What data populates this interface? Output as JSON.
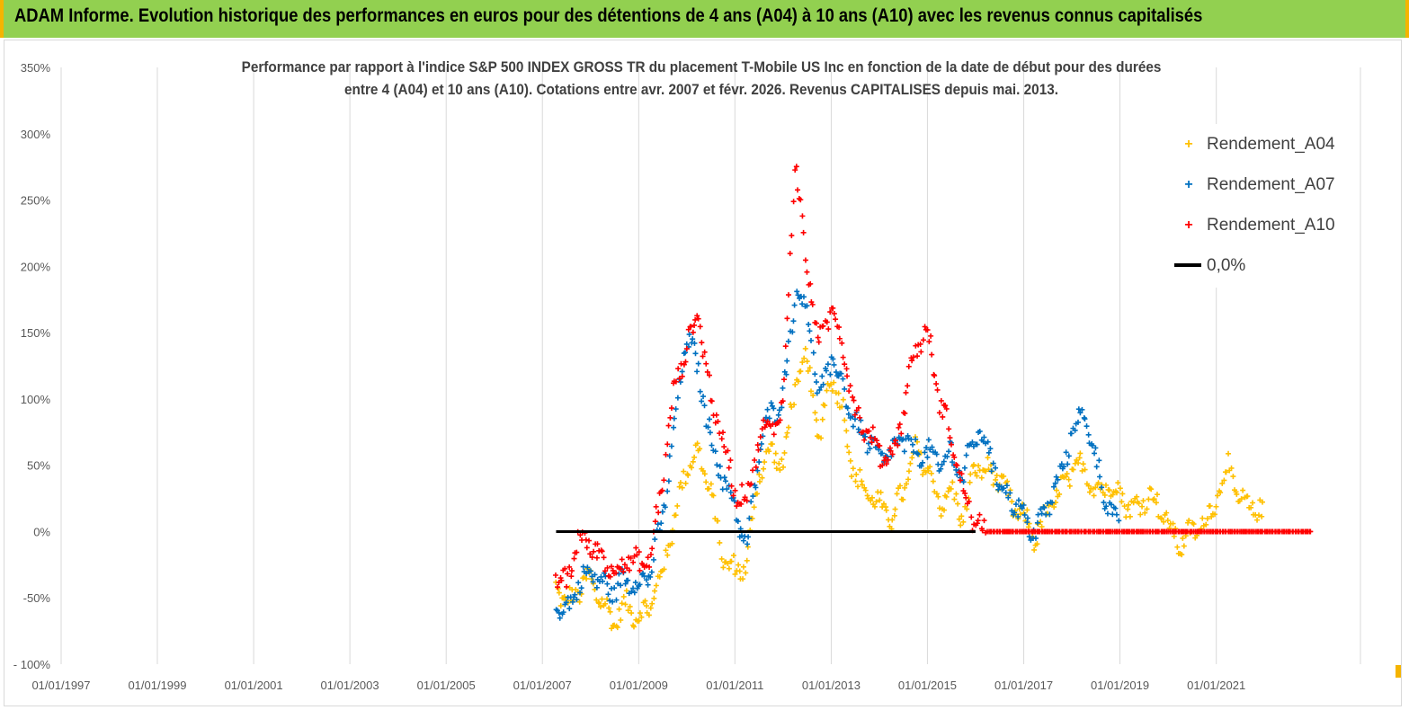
{
  "banner": {
    "title": "ADAM Informe. Evolution historique des performances en euros pour des détentions de 4 ans (A04) à 10 ans (A10) avec les revenus connus capitalisés"
  },
  "colors": {
    "banner_bg": "#92d050",
    "accent": "#f5b400",
    "A04": "#ffc000",
    "A07": "#0070c0",
    "A10": "#ff0000",
    "zero_line": "#000000"
  },
  "chart_data": {
    "type": "scatter",
    "title_lines": [
      "Performance par rapport à l'indice S&P 500 INDEX GROSS TR  du placement T-Mobile US Inc en fonction de la date de début pour des durées",
      "entre 4 (A04) et 10 ans (A10). Cotations entre avr. 2007 et févr. 2026. Revenus CAPITALISES depuis mai. 2013."
    ],
    "xlabel": "",
    "ylabel": "",
    "xlim": [
      "1997-01-01",
      "2023-12-31"
    ],
    "ylim": [
      -100,
      350
    ],
    "x_tick_labels": [
      "01/01/1997",
      "01/01/1999",
      "01/01/2001",
      "01/01/2003",
      "01/01/2005",
      "01/01/2007",
      "01/01/2009",
      "01/01/2011",
      "01/01/2013",
      "01/01/2015",
      "01/01/2017",
      "01/01/2019",
      "01/01/2021"
    ],
    "y_tick_values": [
      -100,
      -50,
      0,
      50,
      100,
      150,
      200,
      250,
      300,
      350
    ],
    "y_tick_labels": [
      "- 100%",
      "-50%",
      "0%",
      "50%",
      "100%",
      "150%",
      "200%",
      "250%",
      "300%",
      "350%"
    ],
    "marker": "+",
    "grid": "vertical gridlines",
    "legend_position": "top-right",
    "series": [
      {
        "name": "Rendement_A04",
        "points": [
          [
            "2007-04-15",
            -40
          ],
          [
            "2007-07-01",
            -55
          ],
          [
            "2007-10-01",
            -45
          ],
          [
            "2008-01-01",
            -35
          ],
          [
            "2008-04-01",
            -55
          ],
          [
            "2008-07-01",
            -68
          ],
          [
            "2008-10-01",
            -55
          ],
          [
            "2009-01-01",
            -65
          ],
          [
            "2009-04-01",
            -55
          ],
          [
            "2009-07-01",
            -30
          ],
          [
            "2009-10-01",
            10
          ],
          [
            "2010-01-01",
            50
          ],
          [
            "2010-04-01",
            60
          ],
          [
            "2010-07-01",
            30
          ],
          [
            "2010-10-01",
            -20
          ],
          [
            "2011-01-01",
            -30
          ],
          [
            "2011-04-01",
            -25
          ],
          [
            "2011-07-01",
            45
          ],
          [
            "2011-10-01",
            60
          ],
          [
            "2012-01-01",
            50
          ],
          [
            "2012-04-01",
            110
          ],
          [
            "2012-07-01",
            130
          ],
          [
            "2012-10-01",
            70
          ],
          [
            "2013-01-01",
            120
          ],
          [
            "2013-04-01",
            90
          ],
          [
            "2013-07-01",
            40
          ],
          [
            "2013-10-01",
            30
          ],
          [
            "2014-01-01",
            20
          ],
          [
            "2014-04-01",
            10
          ],
          [
            "2014-07-01",
            30
          ],
          [
            "2014-10-01",
            60
          ],
          [
            "2015-01-01",
            50
          ],
          [
            "2015-04-01",
            20
          ],
          [
            "2015-07-01",
            30
          ],
          [
            "2015-10-01",
            10
          ],
          [
            "2016-01-01",
            50
          ],
          [
            "2016-04-01",
            45
          ],
          [
            "2016-07-01",
            40
          ],
          [
            "2016-10-01",
            20
          ],
          [
            "2017-01-01",
            10
          ],
          [
            "2017-04-01",
            -5
          ],
          [
            "2017-07-01",
            15
          ],
          [
            "2017-10-01",
            30
          ],
          [
            "2018-01-01",
            45
          ],
          [
            "2018-04-01",
            50
          ],
          [
            "2018-07-01",
            30
          ],
          [
            "2018-10-01",
            35
          ],
          [
            "2019-01-01",
            30
          ],
          [
            "2019-04-01",
            15
          ],
          [
            "2019-07-01",
            25
          ],
          [
            "2019-10-01",
            25
          ],
          [
            "2020-01-01",
            5
          ],
          [
            "2020-04-01",
            -10
          ],
          [
            "2020-07-01",
            0
          ],
          [
            "2020-10-01",
            5
          ],
          [
            "2021-01-01",
            25
          ],
          [
            "2021-04-01",
            50
          ],
          [
            "2021-07-01",
            20
          ],
          [
            "2021-10-01",
            20
          ],
          [
            "2022-01-01",
            10
          ]
        ]
      },
      {
        "name": "Rendement_A07",
        "points": [
          [
            "2007-04-15",
            -55
          ],
          [
            "2007-07-01",
            -60
          ],
          [
            "2007-10-01",
            -40
          ],
          [
            "2008-01-01",
            -30
          ],
          [
            "2008-04-01",
            -40
          ],
          [
            "2008-07-01",
            -45
          ],
          [
            "2008-10-01",
            -35
          ],
          [
            "2009-01-01",
            -40
          ],
          [
            "2009-04-01",
            -30
          ],
          [
            "2009-07-01",
            10
          ],
          [
            "2009-10-01",
            80
          ],
          [
            "2010-01-01",
            150
          ],
          [
            "2010-04-01",
            120
          ],
          [
            "2010-07-01",
            70
          ],
          [
            "2010-10-01",
            40
          ],
          [
            "2011-01-01",
            20
          ],
          [
            "2011-04-01",
            -15
          ],
          [
            "2011-07-01",
            60
          ],
          [
            "2011-10-01",
            90
          ],
          [
            "2012-01-01",
            100
          ],
          [
            "2012-04-01",
            180
          ],
          [
            "2012-07-01",
            170
          ],
          [
            "2012-10-01",
            100
          ],
          [
            "2013-01-01",
            130
          ],
          [
            "2013-04-01",
            110
          ],
          [
            "2013-07-01",
            80
          ],
          [
            "2013-10-01",
            70
          ],
          [
            "2014-01-01",
            55
          ],
          [
            "2014-04-01",
            60
          ],
          [
            "2014-07-01",
            70
          ],
          [
            "2014-10-01",
            60
          ],
          [
            "2015-01-01",
            60
          ],
          [
            "2015-04-01",
            50
          ],
          [
            "2015-07-01",
            60
          ],
          [
            "2015-10-01",
            40
          ],
          [
            "2016-01-01",
            75
          ],
          [
            "2016-04-01",
            65
          ],
          [
            "2016-07-01",
            35
          ],
          [
            "2016-10-01",
            25
          ],
          [
            "2017-01-01",
            10
          ],
          [
            "2017-04-01",
            0
          ],
          [
            "2017-07-01",
            20
          ],
          [
            "2017-10-01",
            40
          ],
          [
            "2018-01-01",
            75
          ],
          [
            "2018-04-01",
            90
          ],
          [
            "2018-07-01",
            55
          ],
          [
            "2018-10-01",
            20
          ],
          [
            "2019-01-01",
            0
          ]
        ]
      },
      {
        "name": "Rendement_A10",
        "points": [
          [
            "2007-04-15",
            -35
          ],
          [
            "2007-07-01",
            -40
          ],
          [
            "2007-10-01",
            -5
          ],
          [
            "2008-01-01",
            -10
          ],
          [
            "2008-04-01",
            -20
          ],
          [
            "2008-07-01",
            -30
          ],
          [
            "2008-10-01",
            -20
          ],
          [
            "2009-01-01",
            -25
          ],
          [
            "2009-04-01",
            -20
          ],
          [
            "2009-07-01",
            40
          ],
          [
            "2009-10-01",
            110
          ],
          [
            "2010-01-01",
            140
          ],
          [
            "2010-04-01",
            165
          ],
          [
            "2010-07-01",
            100
          ],
          [
            "2010-10-01",
            70
          ],
          [
            "2011-01-01",
            30
          ],
          [
            "2011-04-01",
            25
          ],
          [
            "2011-07-01",
            70
          ],
          [
            "2011-10-01",
            80
          ],
          [
            "2012-01-01",
            90
          ],
          [
            "2012-04-01",
            280
          ],
          [
            "2012-07-01",
            200
          ],
          [
            "2012-10-01",
            140
          ],
          [
            "2013-01-01",
            170
          ],
          [
            "2013-04-01",
            140
          ],
          [
            "2013-07-01",
            90
          ],
          [
            "2013-10-01",
            75
          ],
          [
            "2014-01-01",
            60
          ],
          [
            "2014-04-01",
            55
          ],
          [
            "2014-07-01",
            90
          ],
          [
            "2014-10-01",
            140
          ],
          [
            "2015-01-01",
            150
          ],
          [
            "2015-04-01",
            100
          ],
          [
            "2015-07-01",
            70
          ],
          [
            "2015-10-01",
            30
          ],
          [
            "2016-01-01",
            5
          ],
          [
            "2016-04-01",
            0
          ],
          [
            "2017-01-01",
            0
          ],
          [
            "2018-01-01",
            0
          ],
          [
            "2019-01-01",
            0
          ],
          [
            "2020-01-01",
            0
          ],
          [
            "2021-01-01",
            0
          ],
          [
            "2022-01-01",
            0
          ],
          [
            "2022-12-31",
            0
          ]
        ]
      },
      {
        "name": "0,0%",
        "type": "line",
        "points": [
          [
            "2007-04-15",
            0
          ],
          [
            "2016-01-01",
            0
          ]
        ]
      }
    ]
  }
}
